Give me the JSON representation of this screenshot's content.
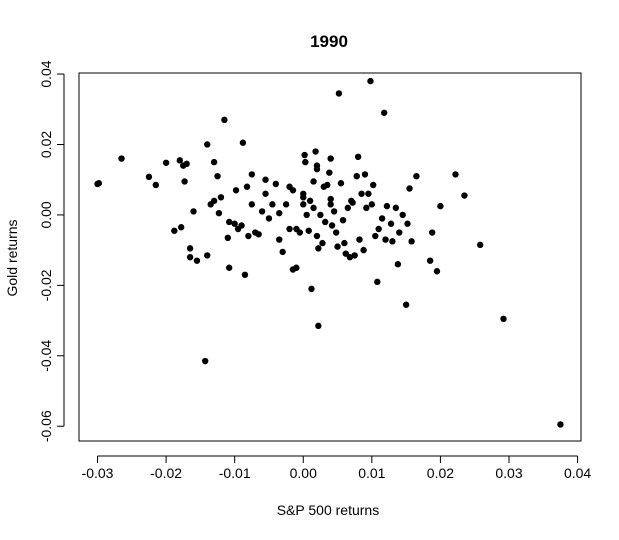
{
  "chart_data": {
    "type": "scatter",
    "title": "1990",
    "xlabel": "S&P 500 returns",
    "ylabel": "Gold returns",
    "xlim": [
      -0.0327,
      0.0405
    ],
    "ylim": [
      -0.0642,
      0.0403
    ],
    "xticks": [
      -0.03,
      -0.02,
      -0.01,
      0.0,
      0.01,
      0.02,
      0.03,
      0.04
    ],
    "xtick_labels": [
      "-0.03",
      "-0.02",
      "-0.01",
      "0.00",
      "0.01",
      "0.02",
      "0.03",
      "0.04"
    ],
    "yticks": [
      -0.06,
      -0.04,
      -0.02,
      0.0,
      0.02,
      0.04
    ],
    "ytick_labels": [
      "-0.06",
      "-0.04",
      "-0.02",
      "0.00",
      "0.02",
      "0.04"
    ],
    "grid": false,
    "legend": "none",
    "point_color": "#000000",
    "points": [
      [
        -0.0298,
        0.009
      ],
      [
        -0.03,
        0.0088
      ],
      [
        -0.0265,
        0.016
      ],
      [
        -0.0225,
        0.0108
      ],
      [
        -0.0215,
        0.0085
      ],
      [
        -0.02,
        0.0148
      ],
      [
        -0.0188,
        -0.0045
      ],
      [
        -0.018,
        0.0155
      ],
      [
        -0.0175,
        0.014
      ],
      [
        -0.0173,
        0.0095
      ],
      [
        -0.0178,
        -0.0035
      ],
      [
        -0.017,
        0.0145
      ],
      [
        -0.0165,
        -0.0095
      ],
      [
        -0.0165,
        -0.012
      ],
      [
        -0.016,
        0.001
      ],
      [
        -0.0155,
        -0.013
      ],
      [
        -0.0143,
        -0.0415
      ],
      [
        -0.014,
        0.02
      ],
      [
        -0.014,
        -0.0115
      ],
      [
        -0.0135,
        0.003
      ],
      [
        -0.013,
        0.015
      ],
      [
        -0.013,
        0.004
      ],
      [
        -0.0125,
        0.011
      ],
      [
        -0.0123,
        0.0005
      ],
      [
        -0.012,
        0.005
      ],
      [
        -0.0115,
        0.027
      ],
      [
        -0.011,
        -0.0065
      ],
      [
        -0.0108,
        -0.002
      ],
      [
        -0.0108,
        -0.015
      ],
      [
        -0.01,
        -0.0025
      ],
      [
        -0.0098,
        0.007
      ],
      [
        -0.0095,
        -0.004
      ],
      [
        -0.009,
        -0.003
      ],
      [
        -0.0088,
        0.0205
      ],
      [
        -0.0085,
        -0.017
      ],
      [
        -0.0082,
        0.008
      ],
      [
        -0.008,
        -0.006
      ],
      [
        -0.0075,
        0.0115
      ],
      [
        -0.0075,
        0.003
      ],
      [
        -0.007,
        -0.005
      ],
      [
        -0.0065,
        -0.0055
      ],
      [
        -0.006,
        0.001
      ],
      [
        -0.0055,
        0.01
      ],
      [
        -0.0055,
        0.006
      ],
      [
        -0.005,
        -0.001
      ],
      [
        -0.0045,
        0.003
      ],
      [
        -0.004,
        0.0088
      ],
      [
        -0.0035,
        0.0005
      ],
      [
        -0.0035,
        -0.007
      ],
      [
        -0.003,
        -0.0105
      ],
      [
        -0.0025,
        0.003
      ],
      [
        -0.002,
        0.008
      ],
      [
        -0.002,
        -0.004
      ],
      [
        -0.0015,
        0.007
      ],
      [
        -0.0015,
        -0.0155
      ],
      [
        -0.001,
        -0.004
      ],
      [
        -0.001,
        -0.015
      ],
      [
        -0.0005,
        -0.005
      ],
      [
        0.0,
        0.006
      ],
      [
        0.0,
        0.003
      ],
      [
        0.0,
        0.005
      ],
      [
        0.0002,
        0.017
      ],
      [
        0.0003,
        0.015
      ],
      [
        0.0005,
        0.0
      ],
      [
        0.0008,
        -0.0045
      ],
      [
        0.001,
        0.004
      ],
      [
        0.0012,
        -0.021
      ],
      [
        0.0015,
        0.0095
      ],
      [
        0.0015,
        0.002
      ],
      [
        0.0018,
        0.018
      ],
      [
        0.002,
        0.013
      ],
      [
        0.002,
        0.014
      ],
      [
        0.002,
        -0.006
      ],
      [
        0.0022,
        -0.0095
      ],
      [
        0.0022,
        -0.0315
      ],
      [
        0.0025,
        0.0
      ],
      [
        0.0028,
        -0.008
      ],
      [
        0.003,
        0.008
      ],
      [
        0.0032,
        -0.002
      ],
      [
        0.0035,
        0.0085
      ],
      [
        0.0038,
        0.012
      ],
      [
        0.004,
        0.016
      ],
      [
        0.004,
        0.003
      ],
      [
        0.004,
        0.0045
      ],
      [
        0.0042,
        -0.003
      ],
      [
        0.0045,
        0.001
      ],
      [
        0.0048,
        -0.005
      ],
      [
        0.005,
        -0.009
      ],
      [
        0.0052,
        0.0345
      ],
      [
        0.0055,
        0.009
      ],
      [
        0.0058,
        -0.0015
      ],
      [
        0.006,
        -0.008
      ],
      [
        0.0062,
        -0.011
      ],
      [
        0.0065,
        0.002
      ],
      [
        0.0068,
        -0.012
      ],
      [
        0.007,
        0.004
      ],
      [
        0.0072,
        0.0035
      ],
      [
        0.0075,
        -0.0115
      ],
      [
        0.0078,
        0.011
      ],
      [
        0.008,
        0.0165
      ],
      [
        0.0082,
        -0.007
      ],
      [
        0.0085,
        0.006
      ],
      [
        0.0088,
        -0.01
      ],
      [
        0.009,
        0.0115
      ],
      [
        0.0092,
        0.002
      ],
      [
        0.0095,
        0.006
      ],
      [
        0.0098,
        0.038
      ],
      [
        0.01,
        0.003
      ],
      [
        0.0102,
        0.0085
      ],
      [
        0.0105,
        -0.006
      ],
      [
        0.0108,
        -0.019
      ],
      [
        0.011,
        -0.004
      ],
      [
        0.0115,
        -0.001
      ],
      [
        0.0118,
        0.029
      ],
      [
        0.012,
        -0.007
      ],
      [
        0.0122,
        0.0025
      ],
      [
        0.0128,
        -0.0025
      ],
      [
        0.013,
        -0.0075
      ],
      [
        0.0135,
        0.002
      ],
      [
        0.0138,
        -0.014
      ],
      [
        0.014,
        -0.005
      ],
      [
        0.0145,
        0.0
      ],
      [
        0.015,
        -0.0255
      ],
      [
        0.0152,
        -0.0025
      ],
      [
        0.0155,
        0.0075
      ],
      [
        0.0158,
        -0.0075
      ],
      [
        0.0165,
        0.011
      ],
      [
        0.0185,
        -0.013
      ],
      [
        0.0188,
        -0.005
      ],
      [
        0.0195,
        -0.016
      ],
      [
        0.02,
        0.0025
      ],
      [
        0.0222,
        0.0115
      ],
      [
        0.0235,
        0.0055
      ],
      [
        0.0258,
        -0.0085
      ],
      [
        0.0292,
        -0.0295
      ],
      [
        0.0375,
        -0.0595
      ]
    ]
  }
}
